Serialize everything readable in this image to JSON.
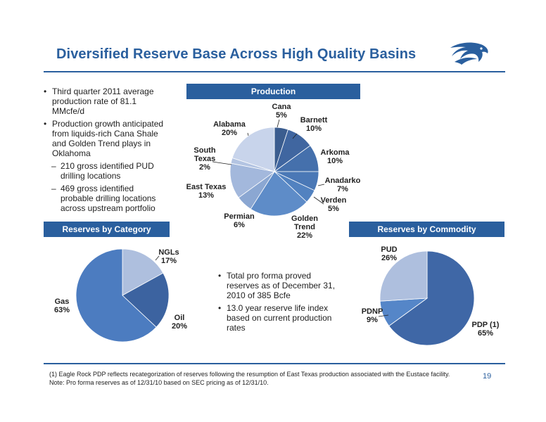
{
  "slide": {
    "title": "Diversified Reserve Base Across High Quality Basins",
    "page_number": "19",
    "logo_icon": "eagle-head-icon",
    "accent_color": "#2a5f9e"
  },
  "left_bullets": {
    "items": [
      {
        "text": "Third quarter 2011 average production rate of 81.1 MMcfe/d",
        "level": 1
      },
      {
        "text": "Production growth anticipated from liquids-rich Cana Shale and Golden Trend plays in Oklahoma",
        "level": 1
      },
      {
        "text": "210 gross identified PUD drilling locations",
        "level": 2
      },
      {
        "text": "469 gross identified probable drilling locations across upstream portfolio",
        "level": 2
      }
    ]
  },
  "mid_bullets": {
    "items": [
      {
        "text": "Total pro forma proved reserves as of December 31, 2010 of 385 Bcfe",
        "level": 1
      },
      {
        "text": "13.0 year reserve life index based on current production rates",
        "level": 1
      }
    ]
  },
  "footnotes": {
    "line1": "(1) Eagle Rock PDP reflects recategorization of reserves following the resumption of East Texas production associated with the Eustace facility.",
    "line2": "Note: Pro forma reserves as of 12/31/10 based on SEC pricing as of 12/31/10."
  },
  "chart_data": [
    {
      "type": "pie",
      "title": "Production",
      "slices": [
        {
          "label": "Cana",
          "value": 5,
          "display": "5%",
          "color": "#3b5d8f"
        },
        {
          "label": "Barnett",
          "value": 10,
          "display": "10%",
          "color": "#4066a0"
        },
        {
          "label": "Arkoma",
          "value": 10,
          "display": "10%",
          "color": "#4570ac"
        },
        {
          "label": "Anadarko",
          "value": 7,
          "display": "7%",
          "color": "#4a78b6"
        },
        {
          "label": "Verden",
          "value": 5,
          "display": "5%",
          "color": "#5282c0"
        },
        {
          "label": "Golden Trend",
          "value": 22,
          "display": "22%",
          "color": "#5e8cc8"
        },
        {
          "label": "Permian",
          "value": 6,
          "display": "6%",
          "color": "#8ba7d2"
        },
        {
          "label": "East Texas",
          "value": 13,
          "display": "13%",
          "color": "#a3b8dc"
        },
        {
          "label": "South Texas",
          "value": 2,
          "display": "2%",
          "color": "#b3c4e2"
        },
        {
          "label": "Alabama",
          "value": 20,
          "display": "20%",
          "color": "#c8d4eb"
        }
      ]
    },
    {
      "type": "pie",
      "title": "Reserves by Category",
      "slices": [
        {
          "label": "NGLs",
          "value": 17,
          "display": "17%",
          "color": "#aebfde"
        },
        {
          "label": "Oil",
          "value": 20,
          "display": "20%",
          "color": "#3c63a0"
        },
        {
          "label": "Gas",
          "value": 63,
          "display": "63%",
          "color": "#4c7cc0"
        }
      ]
    },
    {
      "type": "pie",
      "title": "Reserves by Commodity",
      "slices": [
        {
          "label": "PDP (1)",
          "value": 65,
          "display": "65%",
          "color": "#3f67a6"
        },
        {
          "label": "PDNP",
          "value": 9,
          "display": "9%",
          "color": "#5586c8"
        },
        {
          "label": "PUD",
          "value": 26,
          "display": "26%",
          "color": "#aebfde"
        }
      ]
    }
  ]
}
